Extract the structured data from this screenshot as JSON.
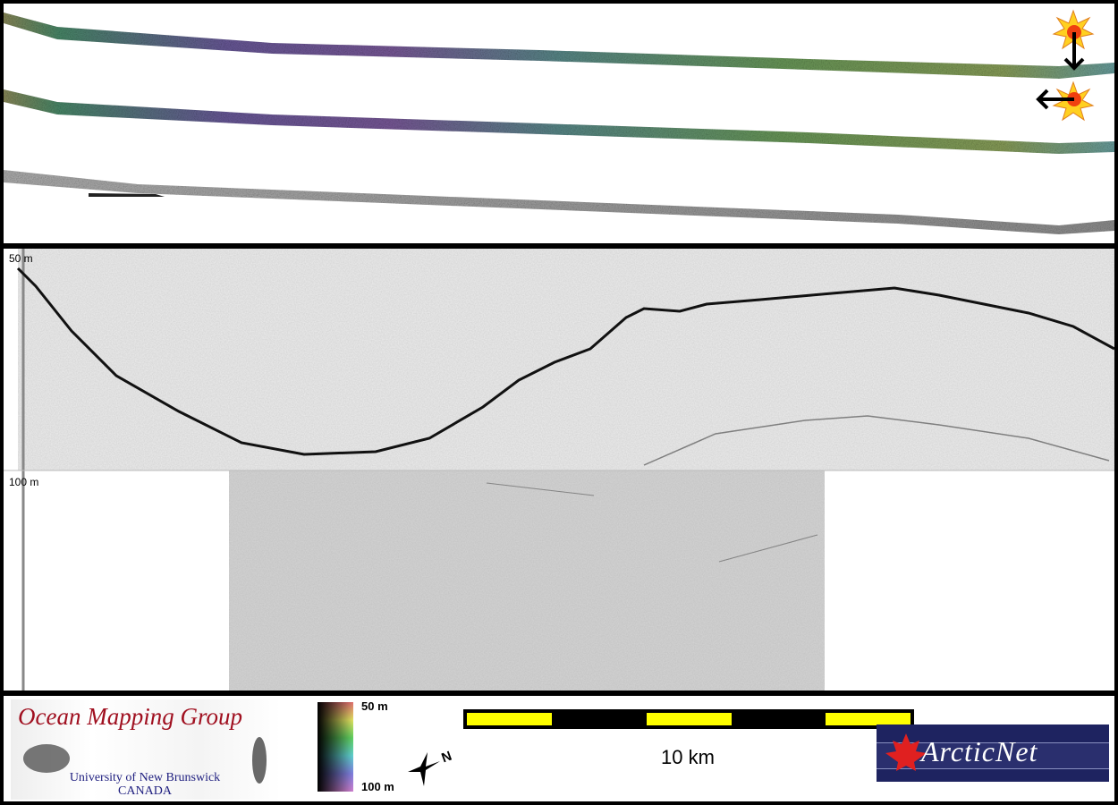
{
  "seismic": {
    "depth_top_label": "50 m",
    "depth_mid_label": "100 m"
  },
  "legend": {
    "logo_left": {
      "title": "Ocean Mapping Group",
      "line1": "University of New Brunswick",
      "line2": "CANADA"
    },
    "colorbar": {
      "top_label": "50 m",
      "bottom_label": "100 m"
    },
    "compass": {
      "north_label": "N"
    },
    "scale_bar": {
      "label": "10 km"
    },
    "logo_right": {
      "text": "ArcticNet"
    }
  },
  "icons": [
    "sun-illumination-icon",
    "arrow-down-icon",
    "arrow-left-icon",
    "north-arrow-icon",
    "maple-leaf-icon"
  ],
  "colors": {
    "scale_yellow": "#ffff00",
    "omg_red": "#a01020",
    "arcticnet_navy": "#1e2360"
  }
}
